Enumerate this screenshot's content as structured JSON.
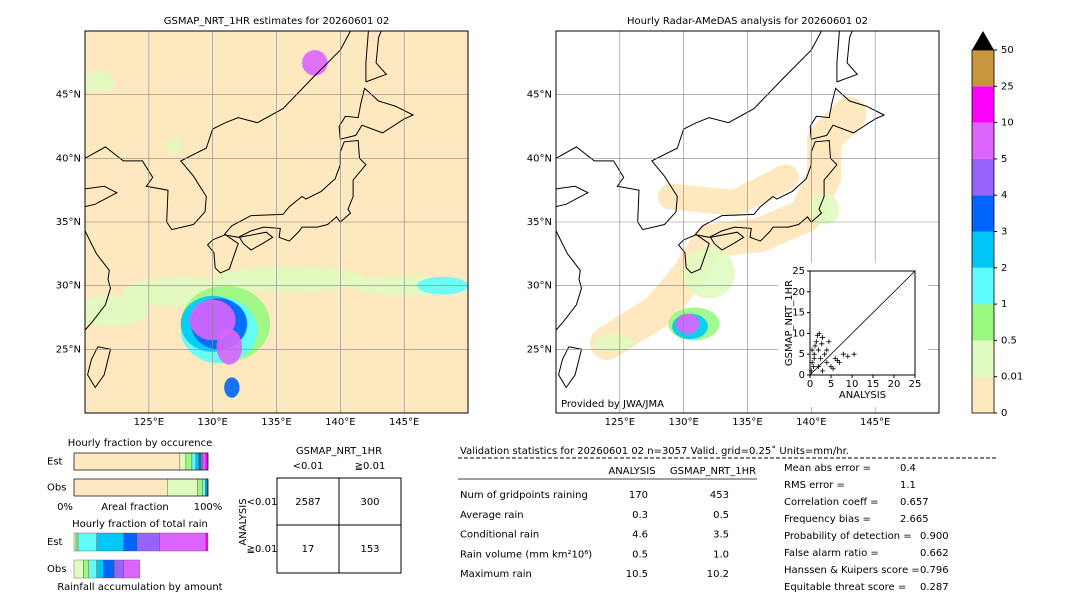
{
  "maps": [
    {
      "title": "GSMAP_NRT_1HR estimates for 20260601 02",
      "lonlim": [
        120,
        150
      ],
      "latlim": [
        20,
        50
      ],
      "lat_ticks": [
        {
          "value": 45,
          "label": "45°N"
        },
        {
          "value": 40,
          "label": "40°N"
        },
        {
          "value": 35,
          "label": "35°N"
        },
        {
          "value": 30,
          "label": "30°N"
        },
        {
          "value": 25,
          "label": "25°N"
        }
      ],
      "lon_ticks": [
        {
          "value": 125,
          "label": "125°E"
        },
        {
          "value": 130,
          "label": "130°E"
        },
        {
          "value": 135,
          "label": "135°E"
        },
        {
          "value": 140,
          "label": "140°E"
        },
        {
          "value": 145,
          "label": "145°E"
        }
      ]
    },
    {
      "title": "Hourly Radar-AMeDAS analysis for 20260601 02",
      "lonlim": [
        120,
        150
      ],
      "latlim": [
        20,
        50
      ],
      "credit": "Provided by JWA/JMA",
      "lat_ticks": [
        {
          "value": 45,
          "label": "45°N"
        },
        {
          "value": 40,
          "label": "40°N"
        },
        {
          "value": 35,
          "label": "35°N"
        },
        {
          "value": 30,
          "label": "30°N"
        },
        {
          "value": 25,
          "label": "25°N"
        }
      ],
      "lon_ticks": [
        {
          "value": 125,
          "label": "125°E"
        },
        {
          "value": 130,
          "label": "130°E"
        },
        {
          "value": 135,
          "label": "135°E"
        },
        {
          "value": 140,
          "label": "140°E"
        },
        {
          "value": 145,
          "label": "145°E"
        }
      ]
    }
  ],
  "colorbar": {
    "levels": [
      0,
      0.01,
      0.5,
      1,
      2,
      3,
      4,
      5,
      10,
      25,
      50
    ],
    "colors": [
      "#fde8c0",
      "#e0fbc0",
      "#98f880",
      "#60fcfc",
      "#00c8f8",
      "#0064fc",
      "#9664fc",
      "#dc64fc",
      "#fc00fc",
      "#c8963c"
    ],
    "extend_color": "#000000"
  },
  "scatter": {
    "xlabel": "ANALYSIS",
    "ylabel": "GSMAP_NRT_1HR",
    "xlim": [
      0,
      25
    ],
    "ylim": [
      0,
      25
    ],
    "xticks": [
      0,
      5,
      10,
      15,
      20,
      25
    ],
    "yticks": [
      0,
      5,
      10,
      15,
      20,
      25
    ],
    "x": [
      0.5,
      1,
      1.5,
      2,
      2.5,
      3,
      0.3,
      0.8,
      1.2,
      2.2,
      3.5,
      4,
      4.5,
      5,
      6,
      7,
      8,
      3,
      4,
      2,
      1,
      0.5,
      5.5,
      6.5,
      9,
      10.5,
      2.8,
      1.8
    ],
    "y": [
      3,
      5,
      8,
      6,
      4,
      9,
      1,
      2,
      7,
      10,
      5,
      3,
      8,
      2,
      4,
      3,
      5,
      1,
      6,
      2,
      4,
      6,
      1.5,
      3.5,
      4.5,
      5,
      7.5,
      9.5
    ]
  },
  "occurrence": {
    "title": "Hourly fraction by occurence",
    "row_names": [
      "Est",
      "Obs"
    ],
    "rows": [
      [
        0.79,
        0.045,
        0.045,
        0.03,
        0.022,
        0.015,
        0.015,
        0.022,
        0.01,
        0.006
      ],
      [
        0.7,
        0.22,
        0.04,
        0.02,
        0.01,
        0.005,
        0.003,
        0.002,
        0,
        0
      ]
    ],
    "axis_labels": [
      "0%",
      "Areal fraction",
      "100%"
    ]
  },
  "total_rain": {
    "title": "Hourly fraction of total rain",
    "row_names": [
      "Est",
      "Obs"
    ],
    "rows": [
      [
        0,
        0.015,
        0.015,
        0.14,
        0.2,
        0.1,
        0.17,
        0.345,
        0.015,
        0
      ],
      [
        0,
        0.07,
        0.04,
        0.06,
        0.05,
        0.08,
        0.07,
        0.12,
        0,
        0
      ]
    ],
    "footer": "Rainfall accumulation by amount"
  },
  "contingency": {
    "title": "GSMAP_NRT_1HR",
    "col_labels": [
      "<0.01",
      "≧0.01"
    ],
    "row_title": "ANALYSIS",
    "row_labels": [
      "<0.01",
      "≧0.01"
    ],
    "cells": [
      [
        2587,
        300
      ],
      [
        17,
        153
      ]
    ]
  },
  "validation": {
    "header": "Validation statistics for 20260601 02  n=3057 Valid. grid=0.25˚ Units=mm/hr.",
    "columns": [
      "ANALYSIS",
      "GSMAP_NRT_1HR"
    ],
    "rows": [
      {
        "label": "Num of gridpoints raining",
        "values": [
          170,
          453
        ]
      },
      {
        "label": "Average rain",
        "values": [
          0.3,
          0.5
        ]
      },
      {
        "label": "Conditional rain",
        "values": [
          4.6,
          3.5
        ]
      },
      {
        "label": "Rain volume (mm km²10⁶)",
        "values": [
          0.5,
          "1.0"
        ]
      },
      {
        "label": "Maximum rain",
        "values": [
          10.5,
          10.2
        ]
      }
    ],
    "scores": [
      {
        "label": "Mean abs error =",
        "value": 0.4
      },
      {
        "label": "RMS error =",
        "value": 1.1
      },
      {
        "label": "Correlation coeff =",
        "value": 0.657
      },
      {
        "label": "Frequency bias =",
        "value": 2.665
      },
      {
        "label": "Probability of detection =",
        "value": "0.900"
      },
      {
        "label": "False alarm ratio =",
        "value": 0.662
      },
      {
        "label": "Hanssen & Kuipers score =",
        "value": 0.796
      },
      {
        "label": "Equitable threat score =",
        "value": 0.287
      }
    ]
  }
}
